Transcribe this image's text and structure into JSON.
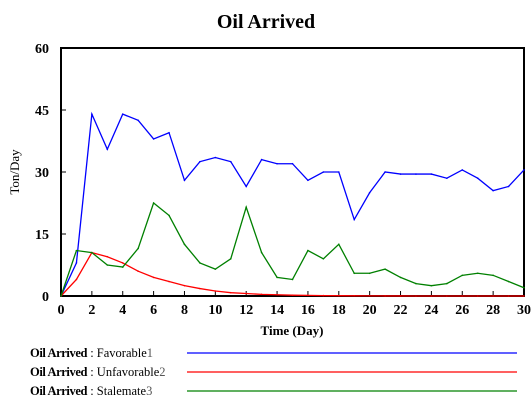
{
  "chart_data": {
    "type": "line",
    "title": "Oil Arrived",
    "xlabel": "Time (Day)",
    "ylabel": "Ton/Day",
    "xlim": [
      0,
      30
    ],
    "ylim": [
      0,
      60
    ],
    "x_ticks": [
      "0",
      "2",
      "4",
      "6",
      "8",
      "10",
      "12",
      "14",
      "16",
      "18",
      "20",
      "22",
      "24",
      "26",
      "28",
      "30"
    ],
    "y_ticks": [
      "0",
      "15",
      "30",
      "45",
      "60"
    ],
    "grid": false,
    "legend_position": "bottom",
    "x": [
      0,
      1,
      2,
      3,
      4,
      5,
      6,
      7,
      8,
      9,
      10,
      11,
      12,
      13,
      14,
      15,
      16,
      17,
      18,
      19,
      20,
      21,
      22,
      23,
      24,
      25,
      26,
      27,
      28,
      29,
      30
    ],
    "series": [
      {
        "name": "Favorable",
        "color": "#0000ff",
        "values": [
          0,
          8,
          44,
          35.5,
          44,
          42.5,
          38,
          39.5,
          28,
          32.5,
          33.5,
          32.5,
          26.5,
          33,
          32,
          32,
          28,
          30,
          30,
          18.5,
          25,
          30,
          29.5,
          29.5,
          29.5,
          28.5,
          30.5,
          28.5,
          25.5,
          26.5,
          30.5
        ]
      },
      {
        "name": "Unfavorable",
        "color": "#ff0000",
        "values": [
          0,
          4,
          10.5,
          9.5,
          8,
          6,
          4.5,
          3.5,
          2.5,
          1.8,
          1.2,
          0.8,
          0.6,
          0.4,
          0.3,
          0.2,
          0.15,
          0.1,
          0.08,
          0.05,
          0.03,
          0.02,
          0.01,
          0,
          0,
          0,
          0,
          0,
          0,
          0,
          0
        ]
      },
      {
        "name": "Stalemate",
        "color": "#008000",
        "values": [
          0,
          11,
          10.5,
          7.5,
          7,
          11.5,
          22.5,
          19.5,
          12.5,
          8,
          6.5,
          9,
          21.5,
          10.5,
          4.5,
          4,
          11,
          9,
          12.5,
          5.5,
          5.5,
          6.5,
          4.5,
          3,
          2.5,
          3,
          5,
          5.5,
          5,
          3.5,
          2
        ]
      }
    ],
    "legend": [
      {
        "variable": "Oil Arrived",
        "separator": " : ",
        "run": "Favorable",
        "marker": "1",
        "color": "#0000ff"
      },
      {
        "variable": "Oil Arrived",
        "separator": " : ",
        "run": "Unfavorable",
        "marker": "2",
        "color": "#ff0000"
      },
      {
        "variable": "Oil Arrived",
        "separator": " : ",
        "run": "Stalemate",
        "marker": "3",
        "color": "#008000"
      }
    ]
  }
}
